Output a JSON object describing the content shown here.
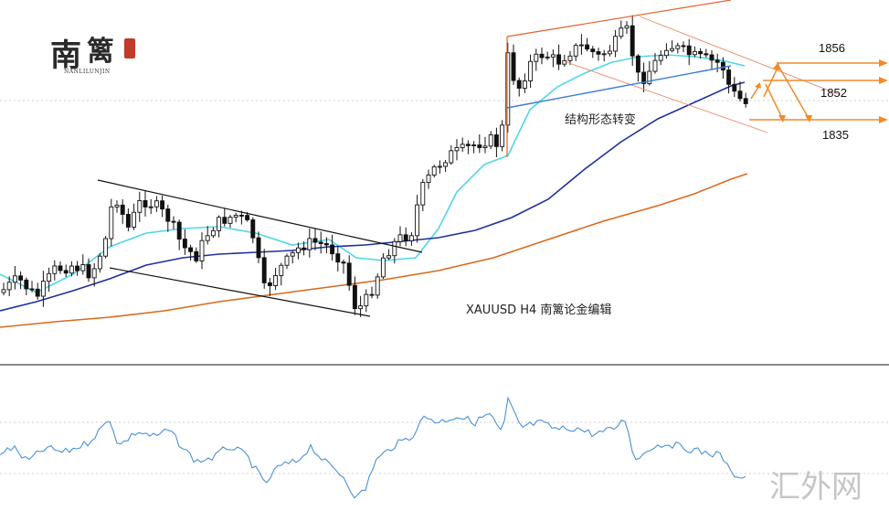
{
  "chart_data": {
    "type": "candlestick",
    "instrument_label": "XAUUSD  H4  南篱论金编辑",
    "annotation": "结构形态转变",
    "price_levels": [
      "1856",
      "1852",
      "1835"
    ],
    "logo_text": "南篱",
    "logo_subtext": "NANLILUNJIN",
    "watermark": "汇外网",
    "colors": {
      "candle": "#111111",
      "ma_fast": "#4fd6e8",
      "ma_mid": "#1f2fa0",
      "ma_slow": "#d86a1e",
      "channel_right": "#e0622a",
      "breakout_line": "#3a7fd0",
      "arrows": "#f08a2a",
      "oscillator": "#4a90d9"
    }
  }
}
